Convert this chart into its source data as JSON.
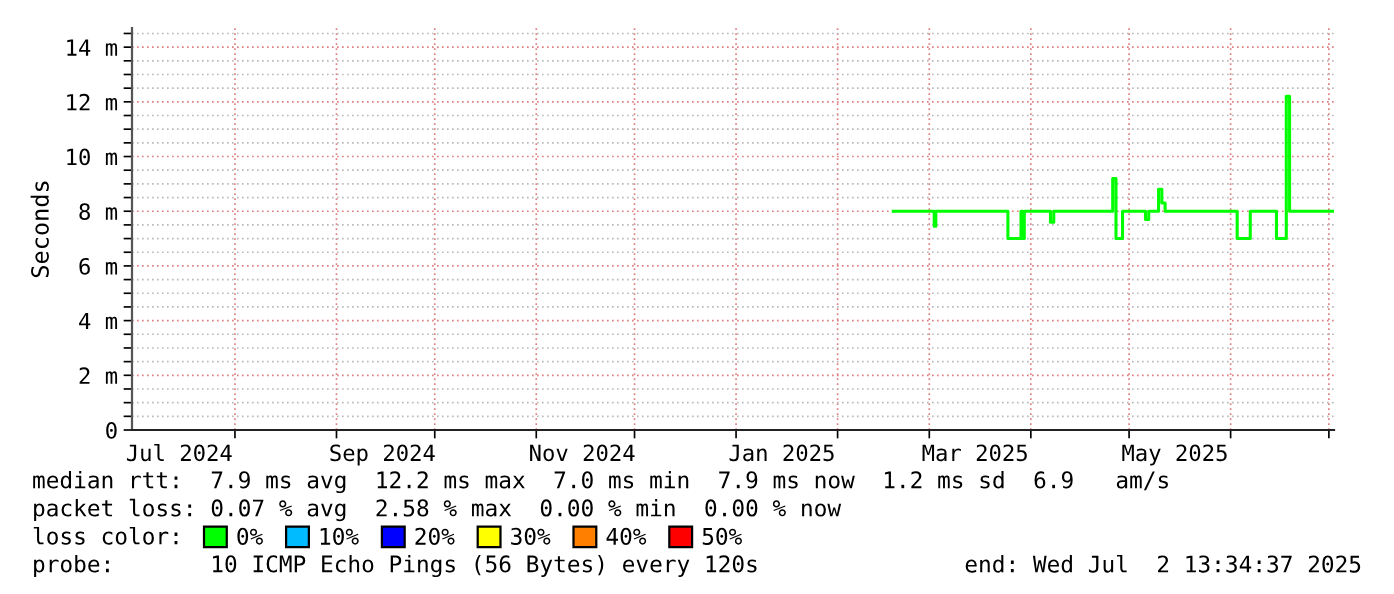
{
  "chart_data": {
    "type": "step",
    "ylabel": "Seconds",
    "legend_title": "loss color:",
    "legend": "bottom",
    "grid": true,
    "x": [
      "2025-02-18",
      "2025-03-02",
      "2025-03-02T12:00",
      "2025-03-03",
      "2025-03-25",
      "2025-03-29",
      "2025-03-29T12:00",
      "2025-03-30",
      "2025-04-01",
      "2025-04-07",
      "2025-04-08",
      "2025-04-26",
      "2025-04-27",
      "2025-04-29",
      "2025-05-06",
      "2025-05-07",
      "2025-05-10",
      "2025-05-11",
      "2025-05-12",
      "2025-06-03",
      "2025-06-07",
      "2025-06-15",
      "2025-06-18",
      "2025-06-19",
      "2025-07-02T13:34"
    ],
    "series": [
      {
        "name": "0%",
        "color": "#00ff00",
        "values": [
          8.0,
          8.0,
          7.45,
          8.0,
          7.0,
          8.0,
          7.0,
          8.0,
          8.0,
          7.6,
          8.0,
          9.2,
          7.0,
          8.0,
          7.7,
          8.0,
          8.8,
          8.3,
          8.0,
          7.0,
          8.0,
          7.0,
          12.2,
          8.0,
          8.0
        ]
      },
      {
        "name": "10%",
        "color": "#00bbff",
        "values": [
          null,
          null,
          null,
          null,
          null,
          null,
          null,
          null,
          null,
          null,
          null,
          null,
          null,
          null,
          null,
          null,
          null,
          null,
          null,
          null,
          null,
          null,
          null,
          null,
          null
        ]
      },
      {
        "name": "20%",
        "color": "#0000ff",
        "values": [
          null,
          null,
          null,
          null,
          null,
          null,
          null,
          null,
          null,
          null,
          null,
          null,
          null,
          null,
          null,
          null,
          null,
          null,
          null,
          null,
          null,
          null,
          null,
          null,
          null
        ]
      },
      {
        "name": "30%",
        "color": "#ffff00",
        "values": [
          null,
          null,
          null,
          null,
          null,
          null,
          null,
          null,
          null,
          null,
          null,
          null,
          null,
          null,
          null,
          null,
          null,
          null,
          null,
          null,
          null,
          null,
          null,
          null,
          null
        ]
      },
      {
        "name": "40%",
        "color": "#ff8000",
        "values": [
          null,
          null,
          null,
          null,
          null,
          null,
          null,
          null,
          null,
          null,
          null,
          null,
          null,
          null,
          null,
          null,
          null,
          null,
          null,
          null,
          null,
          null,
          null,
          null,
          null
        ]
      },
      {
        "name": "50%",
        "color": "#ff0000",
        "values": [
          null,
          null,
          null,
          null,
          null,
          null,
          null,
          null,
          null,
          null,
          null,
          null,
          null,
          null,
          null,
          null,
          null,
          null,
          null,
          null,
          null,
          null,
          null,
          null,
          null
        ]
      }
    ],
    "xlim": [
      "2024-06-30T13:34",
      "2025-07-02T13:34"
    ],
    "xticks": [
      {
        "value": "2024-07-15",
        "label": "Jul 2024"
      },
      {
        "value": "2024-08-01",
        "label": null
      },
      {
        "value": "2024-09-01",
        "label": null
      },
      {
        "value": "2024-09-15",
        "label": "Sep 2024"
      },
      {
        "value": "2024-10-01",
        "label": null
      },
      {
        "value": "2024-11-01",
        "label": null
      },
      {
        "value": "2024-11-15",
        "label": "Nov 2024"
      },
      {
        "value": "2024-12-01",
        "label": null
      },
      {
        "value": "2025-01-01",
        "label": null
      },
      {
        "value": "2025-01-15",
        "label": "Jan 2025"
      },
      {
        "value": "2025-02-01",
        "label": null
      },
      {
        "value": "2025-03-01",
        "label": null
      },
      {
        "value": "2025-03-15",
        "label": "Mar 2025"
      },
      {
        "value": "2025-04-01",
        "label": null
      },
      {
        "value": "2025-05-01",
        "label": null
      },
      {
        "value": "2025-05-15",
        "label": "May 2025"
      },
      {
        "value": "2025-06-01",
        "label": null
      },
      {
        "value": "2025-07-01",
        "label": null
      }
    ],
    "ylim": [
      0,
      14.7
    ],
    "yticks": [
      0,
      {
        "value": 0.5,
        "label": null
      },
      {
        "value": 1,
        "label": null
      },
      {
        "value": 1.5,
        "label": null
      },
      {
        "value": 2,
        "label": "2 m"
      },
      {
        "value": 2.5,
        "label": null
      },
      {
        "value": 3,
        "label": null
      },
      {
        "value": 3.5,
        "label": null
      },
      {
        "value": 4,
        "label": "4 m"
      },
      {
        "value": 4.5,
        "label": null
      },
      {
        "value": 5,
        "label": null
      },
      {
        "value": 5.5,
        "label": null
      },
      {
        "value": 6,
        "label": "6 m"
      },
      {
        "value": 6.5,
        "label": null
      },
      {
        "value": 7,
        "label": null
      },
      {
        "value": 7.5,
        "label": null
      },
      {
        "value": 8,
        "label": "8 m"
      },
      {
        "value": 8.5,
        "label": null
      },
      {
        "value": 9,
        "label": null
      },
      {
        "value": 9.5,
        "label": null
      },
      {
        "value": 10,
        "label": "10 m"
      },
      {
        "value": 10.5,
        "label": null
      },
      {
        "value": 11,
        "label": null
      },
      {
        "value": 11.5,
        "label": null
      },
      {
        "value": 12,
        "label": "12 m"
      },
      {
        "value": 12.5,
        "label": null
      },
      {
        "value": 13,
        "label": null
      },
      {
        "value": 13.5,
        "label": null
      },
      {
        "value": 14,
        "label": "14 m"
      },
      {
        "value": 14.5,
        "label": null
      }
    ],
    "annotations": [
      "median rtt:  7.9 ms avg  12.2 ms max  7.0 ms min  7.9 ms now  1.2 ms sd  6.9   am/s",
      "packet loss: 0.07 % avg  2.58 % max  0.00 % min  0.00 % now",
      "probe:       10 ICMP Echo Pings (56 Bytes) every 120s",
      "end: Wed Jul  2 13:34:37 2025"
    ]
  }
}
